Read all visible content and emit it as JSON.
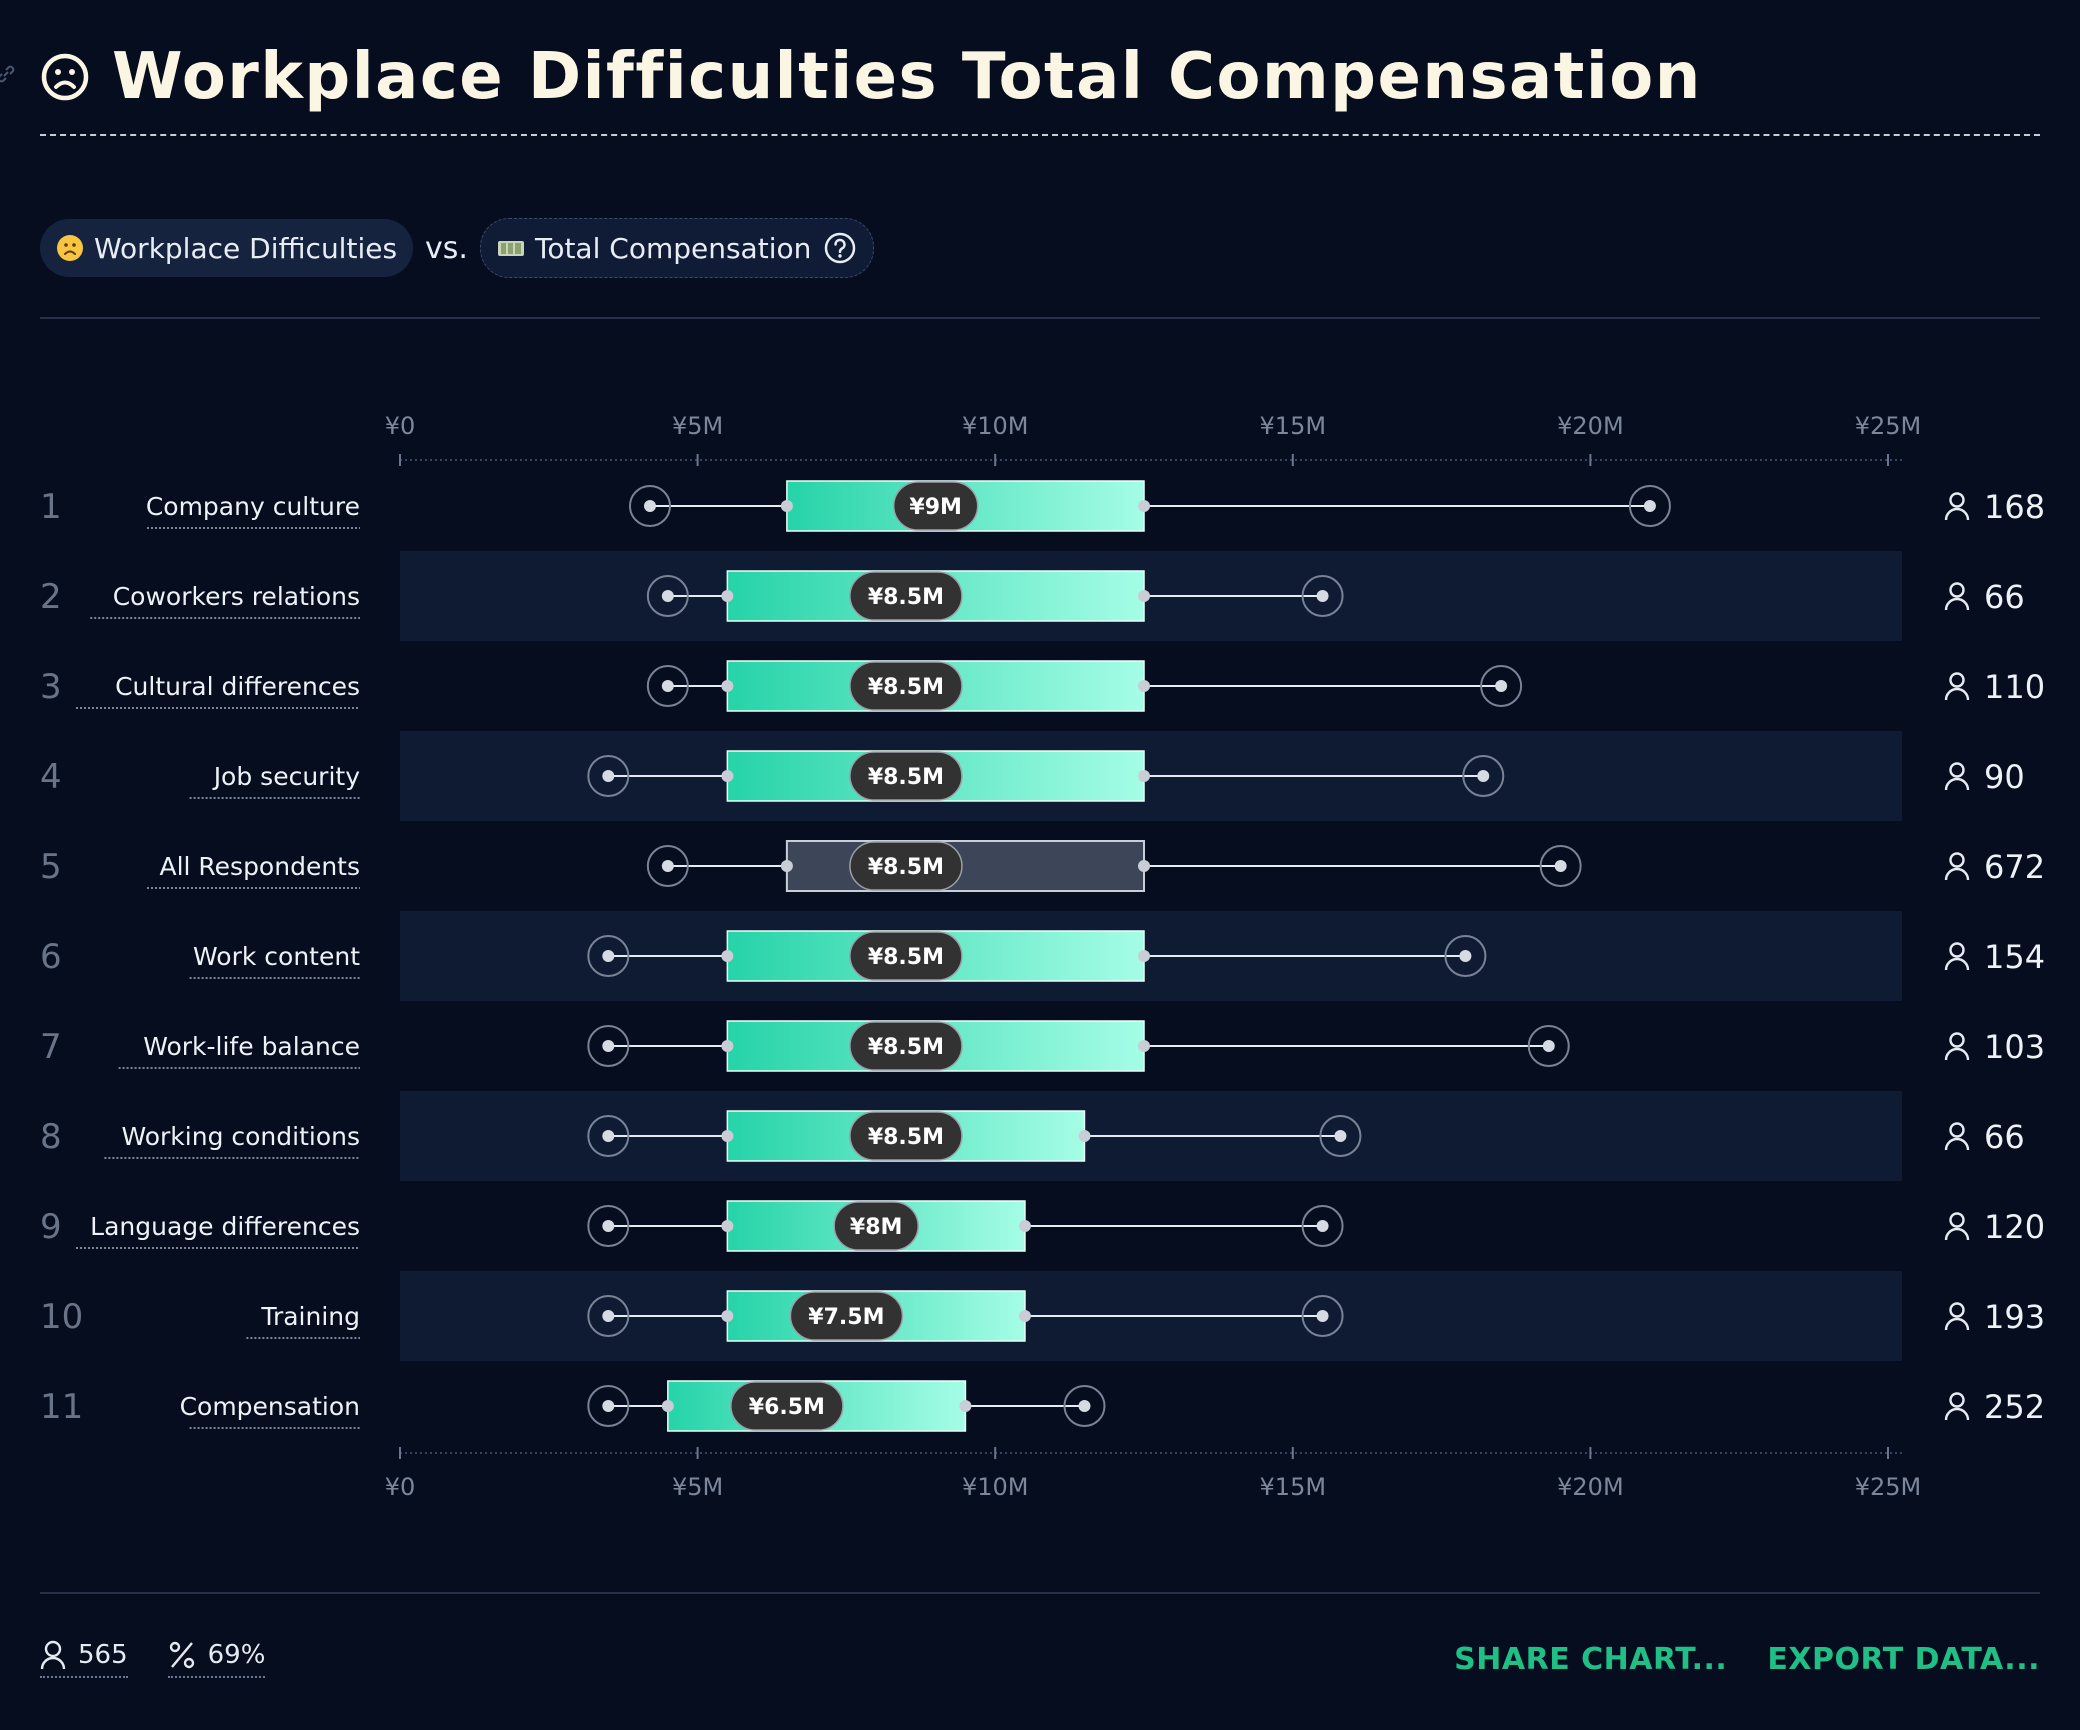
{
  "header": {
    "title": "Workplace Difficulties Total Compensation"
  },
  "filters": {
    "left_label": "Workplace Difficulties",
    "vs_label": "vs.",
    "right_label": "Total Compensation"
  },
  "chart_data": {
    "type": "boxplot",
    "x_ticks": [
      "¥0",
      "¥5M",
      "¥10M",
      "¥15M",
      "¥20M",
      "¥25M"
    ],
    "x_range": [
      0,
      25000000
    ],
    "rows": [
      {
        "rank": "1",
        "label": "Company culture",
        "min": 4200000,
        "q1": 6500000,
        "median": 9000000,
        "q3": 12500000,
        "max": 21000000,
        "median_label": "¥9M",
        "count": "168",
        "highlight": false
      },
      {
        "rank": "2",
        "label": "Coworkers relations",
        "min": 4500000,
        "q1": 5500000,
        "median": 8500000,
        "q3": 12500000,
        "max": 15500000,
        "median_label": "¥8.5M",
        "count": "66",
        "highlight": false
      },
      {
        "rank": "3",
        "label": "Cultural differences",
        "min": 4500000,
        "q1": 5500000,
        "median": 8500000,
        "q3": 12500000,
        "max": 18500000,
        "median_label": "¥8.5M",
        "count": "110",
        "highlight": false
      },
      {
        "rank": "4",
        "label": "Job security",
        "min": 3500000,
        "q1": 5500000,
        "median": 8500000,
        "q3": 12500000,
        "max": 18200000,
        "median_label": "¥8.5M",
        "count": "90",
        "highlight": false
      },
      {
        "rank": "5",
        "label": "All Respondents",
        "min": 4500000,
        "q1": 6500000,
        "median": 8500000,
        "q3": 12500000,
        "max": 19500000,
        "median_label": "¥8.5M",
        "count": "672",
        "highlight": true
      },
      {
        "rank": "6",
        "label": "Work content",
        "min": 3500000,
        "q1": 5500000,
        "median": 8500000,
        "q3": 12500000,
        "max": 17900000,
        "median_label": "¥8.5M",
        "count": "154",
        "highlight": false
      },
      {
        "rank": "7",
        "label": "Work-life balance",
        "min": 3500000,
        "q1": 5500000,
        "median": 8500000,
        "q3": 12500000,
        "max": 19300000,
        "median_label": "¥8.5M",
        "count": "103",
        "highlight": false
      },
      {
        "rank": "8",
        "label": "Working conditions",
        "min": 3500000,
        "q1": 5500000,
        "median": 8500000,
        "q3": 11500000,
        "max": 15800000,
        "median_label": "¥8.5M",
        "count": "66",
        "highlight": false
      },
      {
        "rank": "9",
        "label": "Language differences",
        "min": 3500000,
        "q1": 5500000,
        "median": 8000000,
        "q3": 10500000,
        "max": 15500000,
        "median_label": "¥8M",
        "count": "120",
        "highlight": false
      },
      {
        "rank": "10",
        "label": "Training",
        "min": 3500000,
        "q1": 5500000,
        "median": 7500000,
        "q3": 10500000,
        "max": 15500000,
        "median_label": "¥7.5M",
        "count": "193",
        "highlight": false
      },
      {
        "rank": "11",
        "label": "Compensation",
        "min": 3500000,
        "q1": 4500000,
        "median": 6500000,
        "q3": 9500000,
        "max": 11500000,
        "median_label": "¥6.5M",
        "count": "252",
        "highlight": false
      }
    ]
  },
  "footer": {
    "respondents": "565",
    "percent": "69%",
    "share_label": "SHARE CHART...",
    "export_label": "EXPORT DATA..."
  },
  "colors": {
    "background": "#050d1f",
    "band": "#0e1b33",
    "box_start": "#26d3a8",
    "box_end": "#a5fde6",
    "accent": "#1fbf86"
  }
}
